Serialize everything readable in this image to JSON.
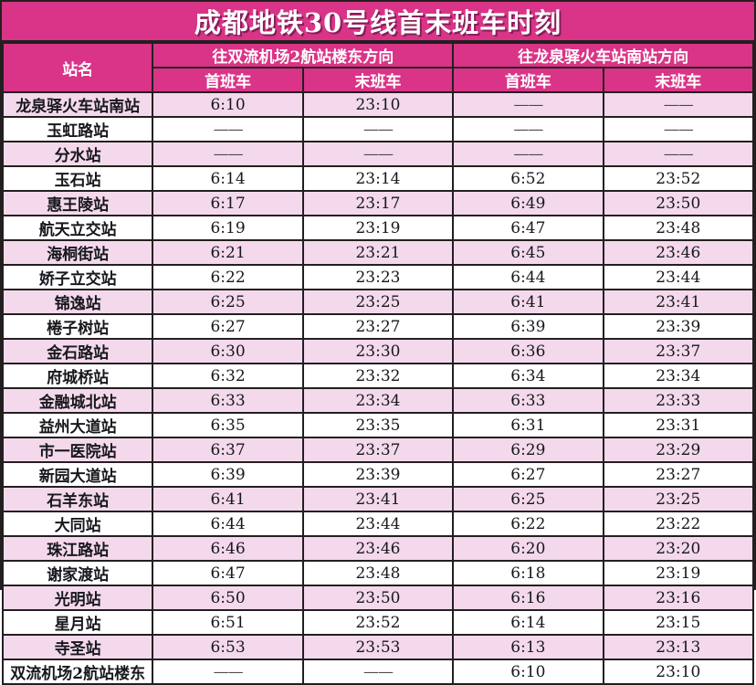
{
  "title": "成都地铁30号线首末班车时刻",
  "colors": {
    "header_magenta": "#d93487",
    "row_pink": "#f3d9eb",
    "row_white": "#ffffff",
    "border_dark": "#231f20",
    "header_text": "#ffffff",
    "body_text": "#17171d"
  },
  "table": {
    "station_header": "站名",
    "dash": "——",
    "directions": [
      {
        "label": "往双流机场2航站楼东方向",
        "first_label": "首班车",
        "last_label": "末班车"
      },
      {
        "label": "往龙泉驿火车站南站方向",
        "first_label": "首班车",
        "last_label": "末班车"
      }
    ],
    "rows": [
      {
        "station": "龙泉驿火车站南站",
        "d1_first": "6:10",
        "d1_last": "23:10",
        "d2_first": "——",
        "d2_last": "——"
      },
      {
        "station": "玉虹路站",
        "d1_first": "——",
        "d1_last": "——",
        "d2_first": "——",
        "d2_last": "——"
      },
      {
        "station": "分水站",
        "d1_first": "——",
        "d1_last": "——",
        "d2_first": "——",
        "d2_last": "——"
      },
      {
        "station": "玉石站",
        "d1_first": "6:14",
        "d1_last": "23:14",
        "d2_first": "6:52",
        "d2_last": "23:52"
      },
      {
        "station": "惠王陵站",
        "d1_first": "6:17",
        "d1_last": "23:17",
        "d2_first": "6:49",
        "d2_last": "23:50"
      },
      {
        "station": "航天立交站",
        "d1_first": "6:19",
        "d1_last": "23:19",
        "d2_first": "6:47",
        "d2_last": "23:48"
      },
      {
        "station": "海桐街站",
        "d1_first": "6:21",
        "d1_last": "23:21",
        "d2_first": "6:45",
        "d2_last": "23:46"
      },
      {
        "station": "娇子立交站",
        "d1_first": "6:22",
        "d1_last": "23:23",
        "d2_first": "6:44",
        "d2_last": "23:44"
      },
      {
        "station": "锦逸站",
        "d1_first": "6:25",
        "d1_last": "23:25",
        "d2_first": "6:41",
        "d2_last": "23:41"
      },
      {
        "station": "棬子树站",
        "d1_first": "6:27",
        "d1_last": "23:27",
        "d2_first": "6:39",
        "d2_last": "23:39"
      },
      {
        "station": "金石路站",
        "d1_first": "6:30",
        "d1_last": "23:30",
        "d2_first": "6:36",
        "d2_last": "23:37"
      },
      {
        "station": "府城桥站",
        "d1_first": "6:32",
        "d1_last": "23:32",
        "d2_first": "6:34",
        "d2_last": "23:34"
      },
      {
        "station": "金融城北站",
        "d1_first": "6:33",
        "d1_last": "23:34",
        "d2_first": "6:33",
        "d2_last": "23:33"
      },
      {
        "station": "益州大道站",
        "d1_first": "6:35",
        "d1_last": "23:35",
        "d2_first": "6:31",
        "d2_last": "23:31"
      },
      {
        "station": "市一医院站",
        "d1_first": "6:37",
        "d1_last": "23:37",
        "d2_first": "6:29",
        "d2_last": "23:29"
      },
      {
        "station": "新园大道站",
        "d1_first": "6:39",
        "d1_last": "23:39",
        "d2_first": "6:27",
        "d2_last": "23:27"
      },
      {
        "station": "石羊东站",
        "d1_first": "6:41",
        "d1_last": "23:41",
        "d2_first": "6:25",
        "d2_last": "23:25"
      },
      {
        "station": "大同站",
        "d1_first": "6:44",
        "d1_last": "23:44",
        "d2_first": "6:22",
        "d2_last": "23:22"
      },
      {
        "station": "珠江路站",
        "d1_first": "6:46",
        "d1_last": "23:46",
        "d2_first": "6:20",
        "d2_last": "23:20"
      },
      {
        "station": "谢家渡站",
        "d1_first": "6:47",
        "d1_last": "23:48",
        "d2_first": "6:18",
        "d2_last": "23:19"
      },
      {
        "station": "光明站",
        "d1_first": "6:50",
        "d1_last": "23:50",
        "d2_first": "6:16",
        "d2_last": "23:16"
      },
      {
        "station": "星月站",
        "d1_first": "6:51",
        "d1_last": "23:52",
        "d2_first": "6:14",
        "d2_last": "23:15"
      },
      {
        "station": "寺圣站",
        "d1_first": "6:53",
        "d1_last": "23:53",
        "d2_first": "6:13",
        "d2_last": "23:13"
      },
      {
        "station": "双流机场2航站楼东",
        "d1_first": "——",
        "d1_last": "——",
        "d2_first": "6:10",
        "d2_last": "23:10"
      }
    ]
  }
}
